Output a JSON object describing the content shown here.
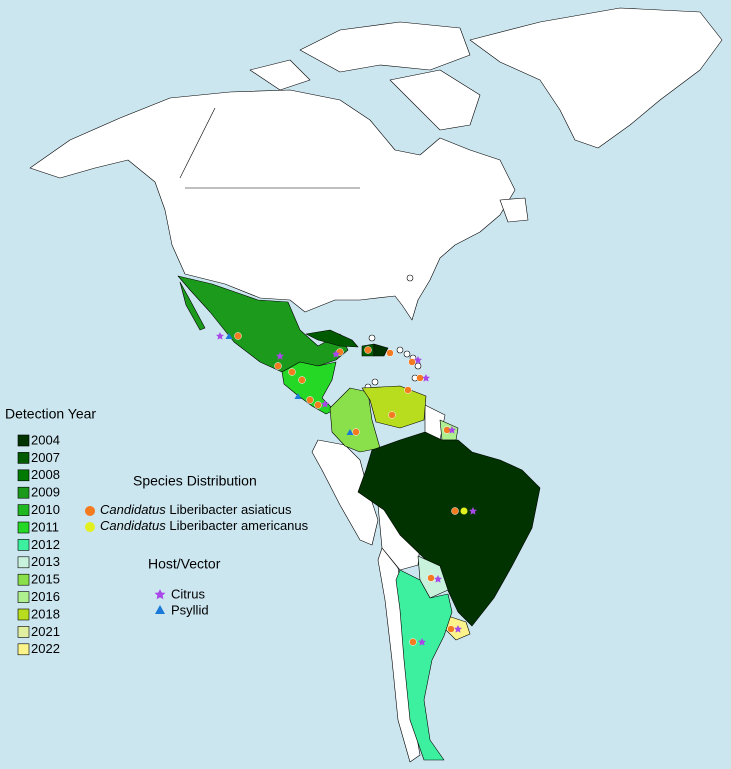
{
  "legend": {
    "detection_year": {
      "title": "Detection Year",
      "items": [
        {
          "label": "2004",
          "color": "#003300"
        },
        {
          "label": "2007",
          "color": "#005a00"
        },
        {
          "label": "2008",
          "color": "#007a00"
        },
        {
          "label": "2009",
          "color": "#1c9a1c"
        },
        {
          "label": "2010",
          "color": "#20b820"
        },
        {
          "label": "2011",
          "color": "#26d826"
        },
        {
          "label": "2012",
          "color": "#3cf0a0"
        },
        {
          "label": "2013",
          "color": "#c8f2dc"
        },
        {
          "label": "2015",
          "color": "#8ae04a"
        },
        {
          "label": "2016",
          "color": "#aef090"
        },
        {
          "label": "2018",
          "color": "#b8dc1e"
        },
        {
          "label": "2021",
          "color": "#e0f0a0"
        },
        {
          "label": "2022",
          "color": "#fcf48a"
        }
      ]
    },
    "species_distribution": {
      "title": "Species Distribution",
      "items": [
        {
          "genus": "Candidatus",
          "name": "Liberibacter asiaticus",
          "color": "#f47a20"
        },
        {
          "genus": "Candidatus",
          "name": "Liberibacter americanus",
          "color": "#e2f020"
        }
      ]
    },
    "host_vector": {
      "title": "Host/Vector",
      "items": [
        {
          "label": "Citrus",
          "color": "#a848e8"
        },
        {
          "label": "Psyllid",
          "color": "#1a7ad8"
        }
      ]
    }
  }
}
